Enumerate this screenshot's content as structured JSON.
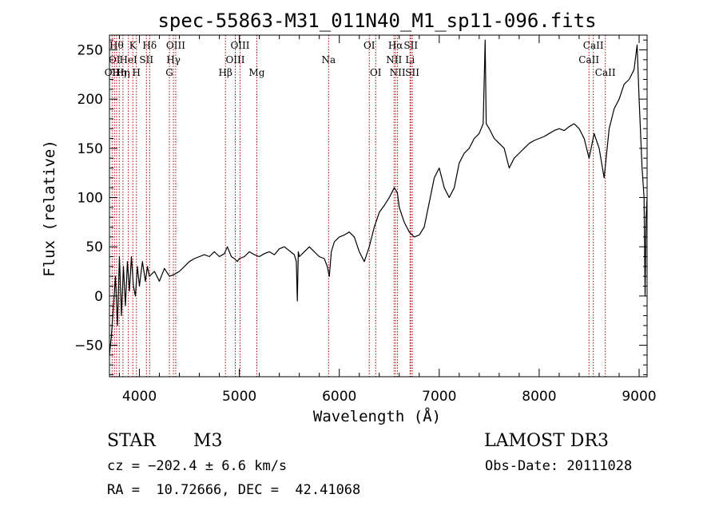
{
  "chart_data": {
    "type": "line",
    "title": "spec-55863-M31_011N40_M1_sp11-096.fits",
    "xlabel": "Wavelength (Å)",
    "ylabel": "Flux (relative)",
    "xlim": [
      3700,
      9080
    ],
    "ylim": [
      -82,
      265
    ],
    "x_ticks": [
      {
        "v": 4000,
        "label": "4000"
      },
      {
        "v": 5000,
        "label": "5000"
      },
      {
        "v": 6000,
        "label": "6000"
      },
      {
        "v": 7000,
        "label": "7000"
      },
      {
        "v": 8000,
        "label": "8000"
      },
      {
        "v": 9000,
        "label": "9000"
      }
    ],
    "y_ticks": [
      {
        "v": -50,
        "label": "−50"
      },
      {
        "v": 0,
        "label": "0"
      },
      {
        "v": 50,
        "label": "50"
      },
      {
        "v": 100,
        "label": "100"
      },
      {
        "v": 150,
        "label": "150"
      },
      {
        "v": 200,
        "label": "200"
      },
      {
        "v": 250,
        "label": "250"
      }
    ],
    "series": [
      {
        "name": "flux",
        "points": [
          [
            3700,
            -60
          ],
          [
            3720,
            -40
          ],
          [
            3740,
            -10
          ],
          [
            3760,
            20
          ],
          [
            3780,
            -30
          ],
          [
            3800,
            40
          ],
          [
            3820,
            -20
          ],
          [
            3840,
            30
          ],
          [
            3860,
            -10
          ],
          [
            3880,
            35
          ],
          [
            3900,
            5
          ],
          [
            3920,
            40
          ],
          [
            3940,
            10
          ],
          [
            3960,
            0
          ],
          [
            3980,
            30
          ],
          [
            4000,
            10
          ],
          [
            4030,
            35
          ],
          [
            4060,
            15
          ],
          [
            4080,
            30
          ],
          [
            4100,
            20
          ],
          [
            4150,
            25
          ],
          [
            4200,
            15
          ],
          [
            4250,
            28
          ],
          [
            4300,
            20
          ],
          [
            4350,
            22
          ],
          [
            4400,
            25
          ],
          [
            4450,
            30
          ],
          [
            4500,
            35
          ],
          [
            4550,
            38
          ],
          [
            4600,
            40
          ],
          [
            4650,
            42
          ],
          [
            4700,
            40
          ],
          [
            4750,
            45
          ],
          [
            4800,
            40
          ],
          [
            4850,
            43
          ],
          [
            4880,
            50
          ],
          [
            4900,
            45
          ],
          [
            4920,
            40
          ],
          [
            4950,
            38
          ],
          [
            4980,
            35
          ],
          [
            5000,
            38
          ],
          [
            5050,
            40
          ],
          [
            5100,
            45
          ],
          [
            5150,
            42
          ],
          [
            5200,
            40
          ],
          [
            5250,
            43
          ],
          [
            5300,
            45
          ],
          [
            5350,
            42
          ],
          [
            5400,
            48
          ],
          [
            5450,
            50
          ],
          [
            5500,
            46
          ],
          [
            5550,
            42
          ],
          [
            5570,
            35
          ],
          [
            5580,
            -5
          ],
          [
            5590,
            45
          ],
          [
            5600,
            40
          ],
          [
            5650,
            45
          ],
          [
            5700,
            50
          ],
          [
            5750,
            45
          ],
          [
            5800,
            40
          ],
          [
            5850,
            38
          ],
          [
            5880,
            30
          ],
          [
            5900,
            20
          ],
          [
            5920,
            45
          ],
          [
            5950,
            55
          ],
          [
            6000,
            60
          ],
          [
            6050,
            62
          ],
          [
            6100,
            65
          ],
          [
            6150,
            60
          ],
          [
            6200,
            45
          ],
          [
            6250,
            35
          ],
          [
            6300,
            50
          ],
          [
            6350,
            70
          ],
          [
            6400,
            85
          ],
          [
            6450,
            92
          ],
          [
            6500,
            100
          ],
          [
            6550,
            110
          ],
          [
            6580,
            105
          ],
          [
            6600,
            90
          ],
          [
            6650,
            75
          ],
          [
            6700,
            65
          ],
          [
            6750,
            60
          ],
          [
            6800,
            62
          ],
          [
            6850,
            70
          ],
          [
            6900,
            95
          ],
          [
            6950,
            120
          ],
          [
            7000,
            130
          ],
          [
            7050,
            110
          ],
          [
            7100,
            100
          ],
          [
            7150,
            110
          ],
          [
            7200,
            135
          ],
          [
            7250,
            145
          ],
          [
            7300,
            150
          ],
          [
            7350,
            160
          ],
          [
            7400,
            165
          ],
          [
            7420,
            170
          ],
          [
            7440,
            175
          ],
          [
            7460,
            260
          ],
          [
            7470,
            175
          ],
          [
            7500,
            170
          ],
          [
            7550,
            160
          ],
          [
            7600,
            155
          ],
          [
            7650,
            150
          ],
          [
            7700,
            130
          ],
          [
            7750,
            140
          ],
          [
            7800,
            145
          ],
          [
            7850,
            150
          ],
          [
            7900,
            155
          ],
          [
            7950,
            158
          ],
          [
            8000,
            160
          ],
          [
            8050,
            162
          ],
          [
            8100,
            165
          ],
          [
            8150,
            168
          ],
          [
            8200,
            170
          ],
          [
            8250,
            168
          ],
          [
            8300,
            172
          ],
          [
            8350,
            175
          ],
          [
            8400,
            170
          ],
          [
            8450,
            160
          ],
          [
            8500,
            140
          ],
          [
            8550,
            165
          ],
          [
            8600,
            150
          ],
          [
            8650,
            120
          ],
          [
            8700,
            170
          ],
          [
            8750,
            190
          ],
          [
            8800,
            200
          ],
          [
            8850,
            215
          ],
          [
            8900,
            220
          ],
          [
            8950,
            230
          ],
          [
            8980,
            255
          ],
          [
            9000,
            200
          ],
          [
            9030,
            130
          ],
          [
            9050,
            100
          ],
          [
            9060,
            0
          ],
          [
            9070,
            80
          ],
          [
            9080,
            100
          ]
        ]
      }
    ],
    "lines": [
      {
        "x": 3727,
        "labels": [
          {
            "text": "OII",
            "row": 3
          }
        ]
      },
      {
        "x": 3750,
        "labels": [
          {
            "text": "OI",
            "row": 2
          }
        ]
      },
      {
        "x": 3771,
        "labels": [
          {
            "text": "Hθ",
            "row": 1
          }
        ]
      },
      {
        "x": 3798,
        "labels": [
          {
            "text": "Hη",
            "row": 3
          }
        ]
      },
      {
        "x": 3835,
        "labels": [
          {
            "text": "Hη",
            "row": 3
          }
        ]
      },
      {
        "x": 3889,
        "labels": [
          {
            "text": "HeI",
            "row": 2
          }
        ]
      },
      {
        "x": 3934,
        "labels": [
          {
            "text": "K",
            "row": 1
          }
        ]
      },
      {
        "x": 3970,
        "labels": [
          {
            "text": "H",
            "row": 3
          }
        ]
      },
      {
        "x": 4070,
        "labels": [
          {
            "text": "SII",
            "row": 2
          }
        ]
      },
      {
        "x": 4102,
        "labels": [
          {
            "text": "Hδ",
            "row": 1
          }
        ]
      },
      {
        "x": 4300,
        "labels": [
          {
            "text": "G",
            "row": 3
          }
        ]
      },
      {
        "x": 4340,
        "labels": [
          {
            "text": "Hγ",
            "row": 2
          }
        ]
      },
      {
        "x": 4363,
        "labels": [
          {
            "text": "OIII",
            "row": 1
          }
        ]
      },
      {
        "x": 4861,
        "labels": [
          {
            "text": "Hβ",
            "row": 3
          }
        ]
      },
      {
        "x": 4959,
        "labels": [
          {
            "text": "OIII",
            "row": 2
          }
        ]
      },
      {
        "x": 5007,
        "labels": [
          {
            "text": "OIII",
            "row": 1
          }
        ]
      },
      {
        "x": 5175,
        "labels": [
          {
            "text": "Mg",
            "row": 3
          }
        ]
      },
      {
        "x": 5893,
        "labels": [
          {
            "text": "Na",
            "row": 2
          }
        ]
      },
      {
        "x": 6300,
        "labels": [
          {
            "text": "OI",
            "row": 1
          }
        ]
      },
      {
        "x": 6364,
        "labels": [
          {
            "text": "OI",
            "row": 3
          }
        ]
      },
      {
        "x": 6548,
        "labels": [
          {
            "text": "NII",
            "row": 2
          }
        ]
      },
      {
        "x": 6563,
        "labels": [
          {
            "text": "Hα",
            "row": 1
          }
        ]
      },
      {
        "x": 6583,
        "labels": [
          {
            "text": "NII",
            "row": 3
          }
        ]
      },
      {
        "x": 6708,
        "labels": [
          {
            "text": "Li",
            "row": 2
          }
        ]
      },
      {
        "x": 6716,
        "labels": [
          {
            "text": "SII",
            "row": 1
          }
        ]
      },
      {
        "x": 6731,
        "labels": [
          {
            "text": "SII",
            "row": 3
          }
        ]
      },
      {
        "x": 8498,
        "labels": [
          {
            "text": "CaII",
            "row": 2
          }
        ]
      },
      {
        "x": 8542,
        "labels": [
          {
            "text": "CaII",
            "row": 1
          }
        ]
      },
      {
        "x": 8662,
        "labels": [
          {
            "text": "CaII",
            "row": 3
          }
        ]
      }
    ]
  },
  "info": {
    "class_label": "STAR",
    "subclass": "M3",
    "survey": "LAMOST DR3",
    "cz": "cz = −202.4 ± 6.6 km/s",
    "obs_date": "Obs-Date: 20111028",
    "coords": "RA =  10.72666, DEC =  42.41068"
  },
  "colors": {
    "spectrum": "#000000",
    "line_marker": "#b00000",
    "axis": "#000000"
  }
}
